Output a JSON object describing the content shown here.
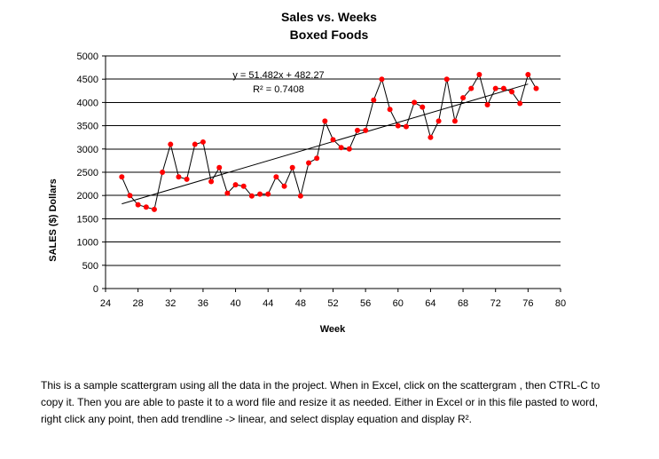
{
  "chart_data": {
    "type": "scatter",
    "title": "Sales vs. Weeks",
    "subtitle": "Boxed Foods",
    "xlabel": "Week",
    "ylabel": "SALES  ($) Dollars",
    "xlim": [
      24,
      80
    ],
    "ylim": [
      0,
      5000
    ],
    "x_ticks": [
      24,
      28,
      32,
      36,
      40,
      44,
      48,
      52,
      56,
      60,
      64,
      68,
      72,
      76,
      80
    ],
    "y_ticks": [
      0,
      500,
      1000,
      1500,
      2000,
      2500,
      3000,
      3500,
      4000,
      4500,
      5000
    ],
    "grid": "horizontal",
    "series": [
      {
        "name": "Sales",
        "color": "#ff0000",
        "line_color": "#000000",
        "x": [
          26,
          27,
          28,
          29,
          30,
          31,
          32,
          33,
          34,
          35,
          36,
          37,
          38,
          39,
          40,
          41,
          42,
          43,
          44,
          45,
          46,
          47,
          48,
          49,
          50,
          51,
          52,
          53,
          54,
          55,
          56,
          57,
          58,
          59,
          60,
          61,
          62,
          63,
          64,
          65,
          66,
          67,
          68,
          69,
          70,
          71,
          72,
          73,
          74,
          75,
          76,
          77
        ],
        "y": [
          2400,
          2000,
          1800,
          1750,
          1700,
          2500,
          3100,
          2400,
          2350,
          3100,
          3150,
          2300,
          2600,
          2050,
          2230,
          2200,
          1990,
          2030,
          2030,
          2400,
          2200,
          2600,
          1990,
          2700,
          2800,
          3600,
          3200,
          3030,
          3000,
          3400,
          3400,
          4050,
          4500,
          3850,
          3500,
          3480,
          4000,
          3900,
          3250,
          3600,
          4500,
          3600,
          4100,
          4300,
          4600,
          3950,
          4300,
          4300,
          4230,
          3980,
          4600,
          4300
        ]
      }
    ],
    "trendline": {
      "type": "linear",
      "slope": 51.482,
      "intercept": 482.27,
      "x_range": [
        26,
        76
      ],
      "equation": "y = 51.482x + 482.27",
      "r_squared": "R² = 0.7408"
    }
  },
  "caption": "This is a sample scattergram using all the data in the project.  When in Excel, click on the scattergram , then CTRL-C to copy it.  Then you are able to paste it to a word file and resize it as needed.  Either in Excel or in this file pasted to word, right click any point, then add trendline -> linear, and select display equation and display R²."
}
